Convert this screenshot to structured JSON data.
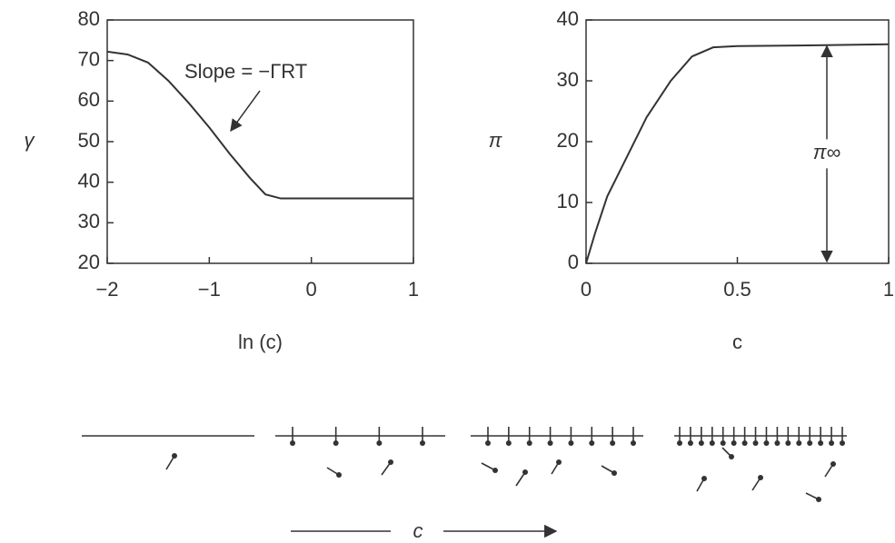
{
  "chart_data": [
    {
      "type": "line",
      "xlabel": "ln (c)",
      "ylabel": "γ",
      "annotation": "Slope = −ΓRT",
      "color": "#333333",
      "x": [
        -2,
        -1.8,
        -1.6,
        -1.4,
        -1.2,
        -1,
        -0.8,
        -0.6,
        -0.45,
        -0.3,
        0,
        0.5,
        1
      ],
      "values": [
        72.2,
        71.5,
        69.5,
        65,
        59.5,
        53.5,
        47,
        41,
        37,
        36,
        36,
        36,
        36
      ],
      "xlim": [
        -2,
        1
      ],
      "ylim": [
        20,
        80
      ],
      "xticks": [
        {
          "value": -2,
          "label": "−2"
        },
        {
          "value": -1,
          "label": "−1"
        },
        0,
        1
      ],
      "yticks": [
        20,
        30,
        40,
        50,
        60,
        70,
        80
      ]
    },
    {
      "type": "line",
      "xlabel": "c",
      "ylabel": "π",
      "annotation": "π∞",
      "color": "#333333",
      "x": [
        0,
        0.03,
        0.07,
        0.12,
        0.2,
        0.28,
        0.35,
        0.42,
        0.5,
        0.7,
        1
      ],
      "values": [
        0,
        5,
        11,
        16,
        24,
        30,
        34,
        35.5,
        35.7,
        35.8,
        36
      ],
      "xlim": [
        0,
        1
      ],
      "ylim": [
        0,
        40
      ],
      "xticks": [
        0,
        0.5,
        1
      ],
      "yticks": [
        0,
        10,
        20,
        30,
        40
      ]
    }
  ],
  "diagram": {
    "label": "c"
  }
}
